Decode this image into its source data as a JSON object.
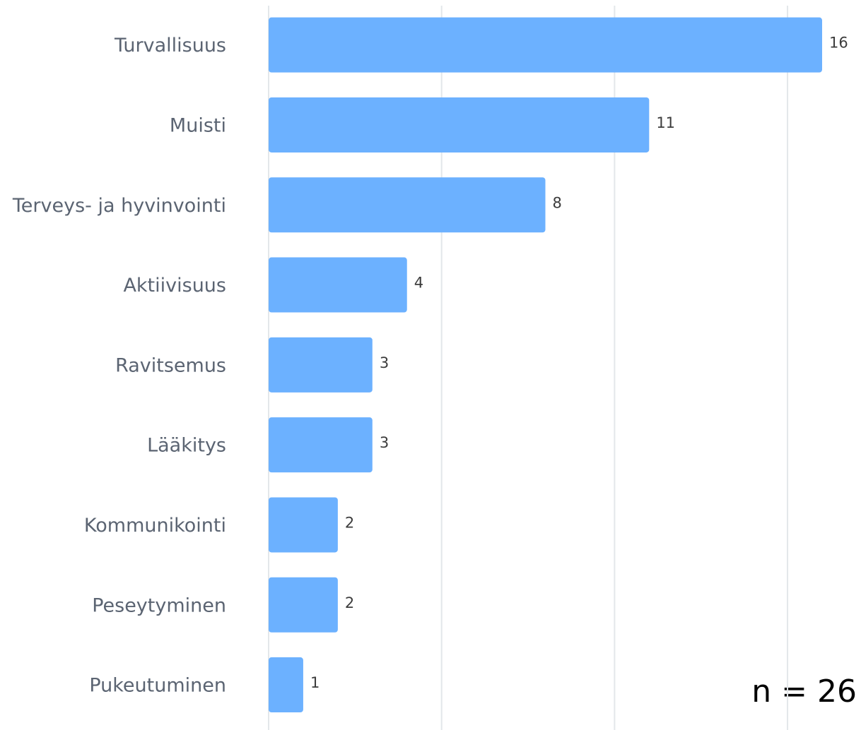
{
  "chart_data": {
    "type": "bar",
    "orientation": "horizontal",
    "categories": [
      "Turvallisuus",
      "Muisti",
      "Terveys- ja hyvinvointi",
      "Aktiivisuus",
      "Ravitsemus",
      "Lääkitys",
      "Kommunikointi",
      "Peseytyminen",
      "Pukeutuminen"
    ],
    "values": [
      16,
      11,
      8,
      4,
      3,
      3,
      2,
      2,
      1
    ],
    "color": "#6cb1ff",
    "xlim": [
      0,
      16
    ],
    "xticks": [
      0,
      5,
      10,
      15
    ],
    "grid": true,
    "annotation": "n = 26"
  }
}
